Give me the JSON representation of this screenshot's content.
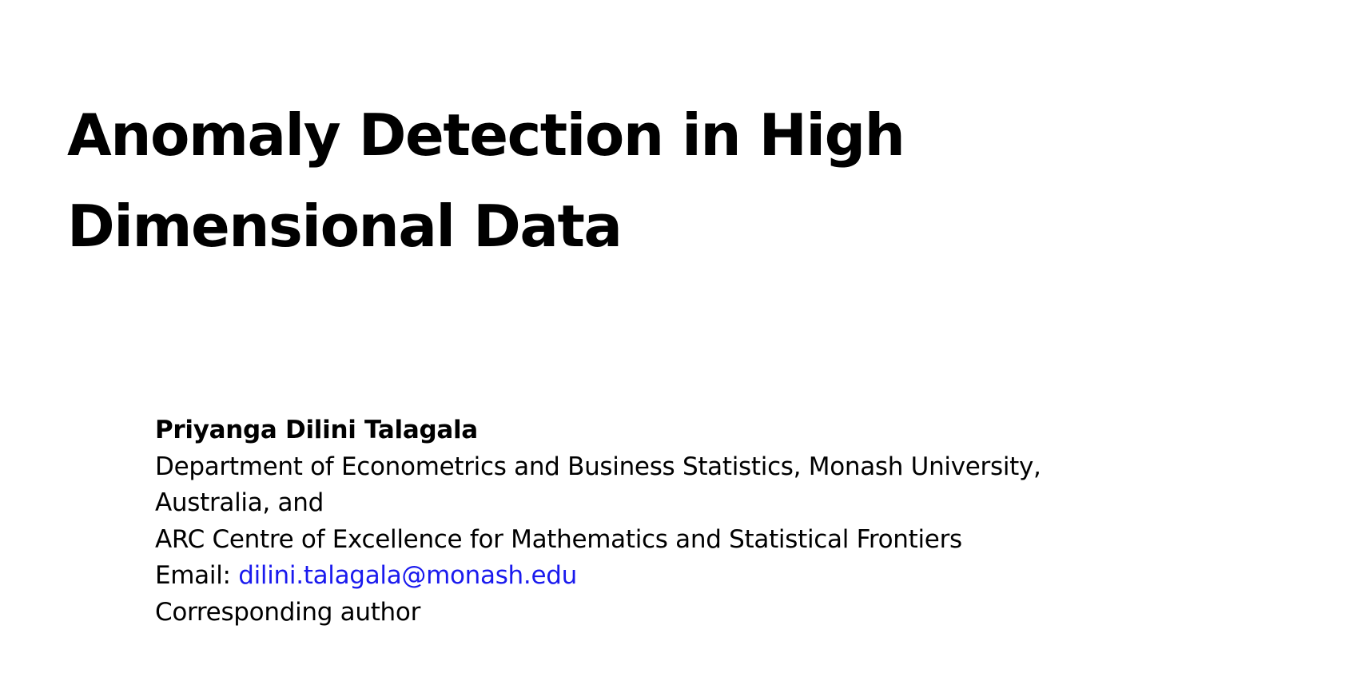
{
  "title": {
    "line1": "Anomaly Detection in High",
    "line2": "Dimensional Data"
  },
  "author": {
    "name": "Priyanga Dilini Talagala",
    "affiliation_line1": "Department of Econometrics and Business Statistics, Monash University,",
    "affiliation_line2": "Australia, and",
    "affiliation_line3": "ARC Centre of Excellence for Mathematics and Statistical Frontiers",
    "email_label": "Email:",
    "email": "dilini.talagala@monash.edu",
    "note": "Corresponding author"
  },
  "colors": {
    "link": "#1a1aee",
    "text": "#000000"
  }
}
